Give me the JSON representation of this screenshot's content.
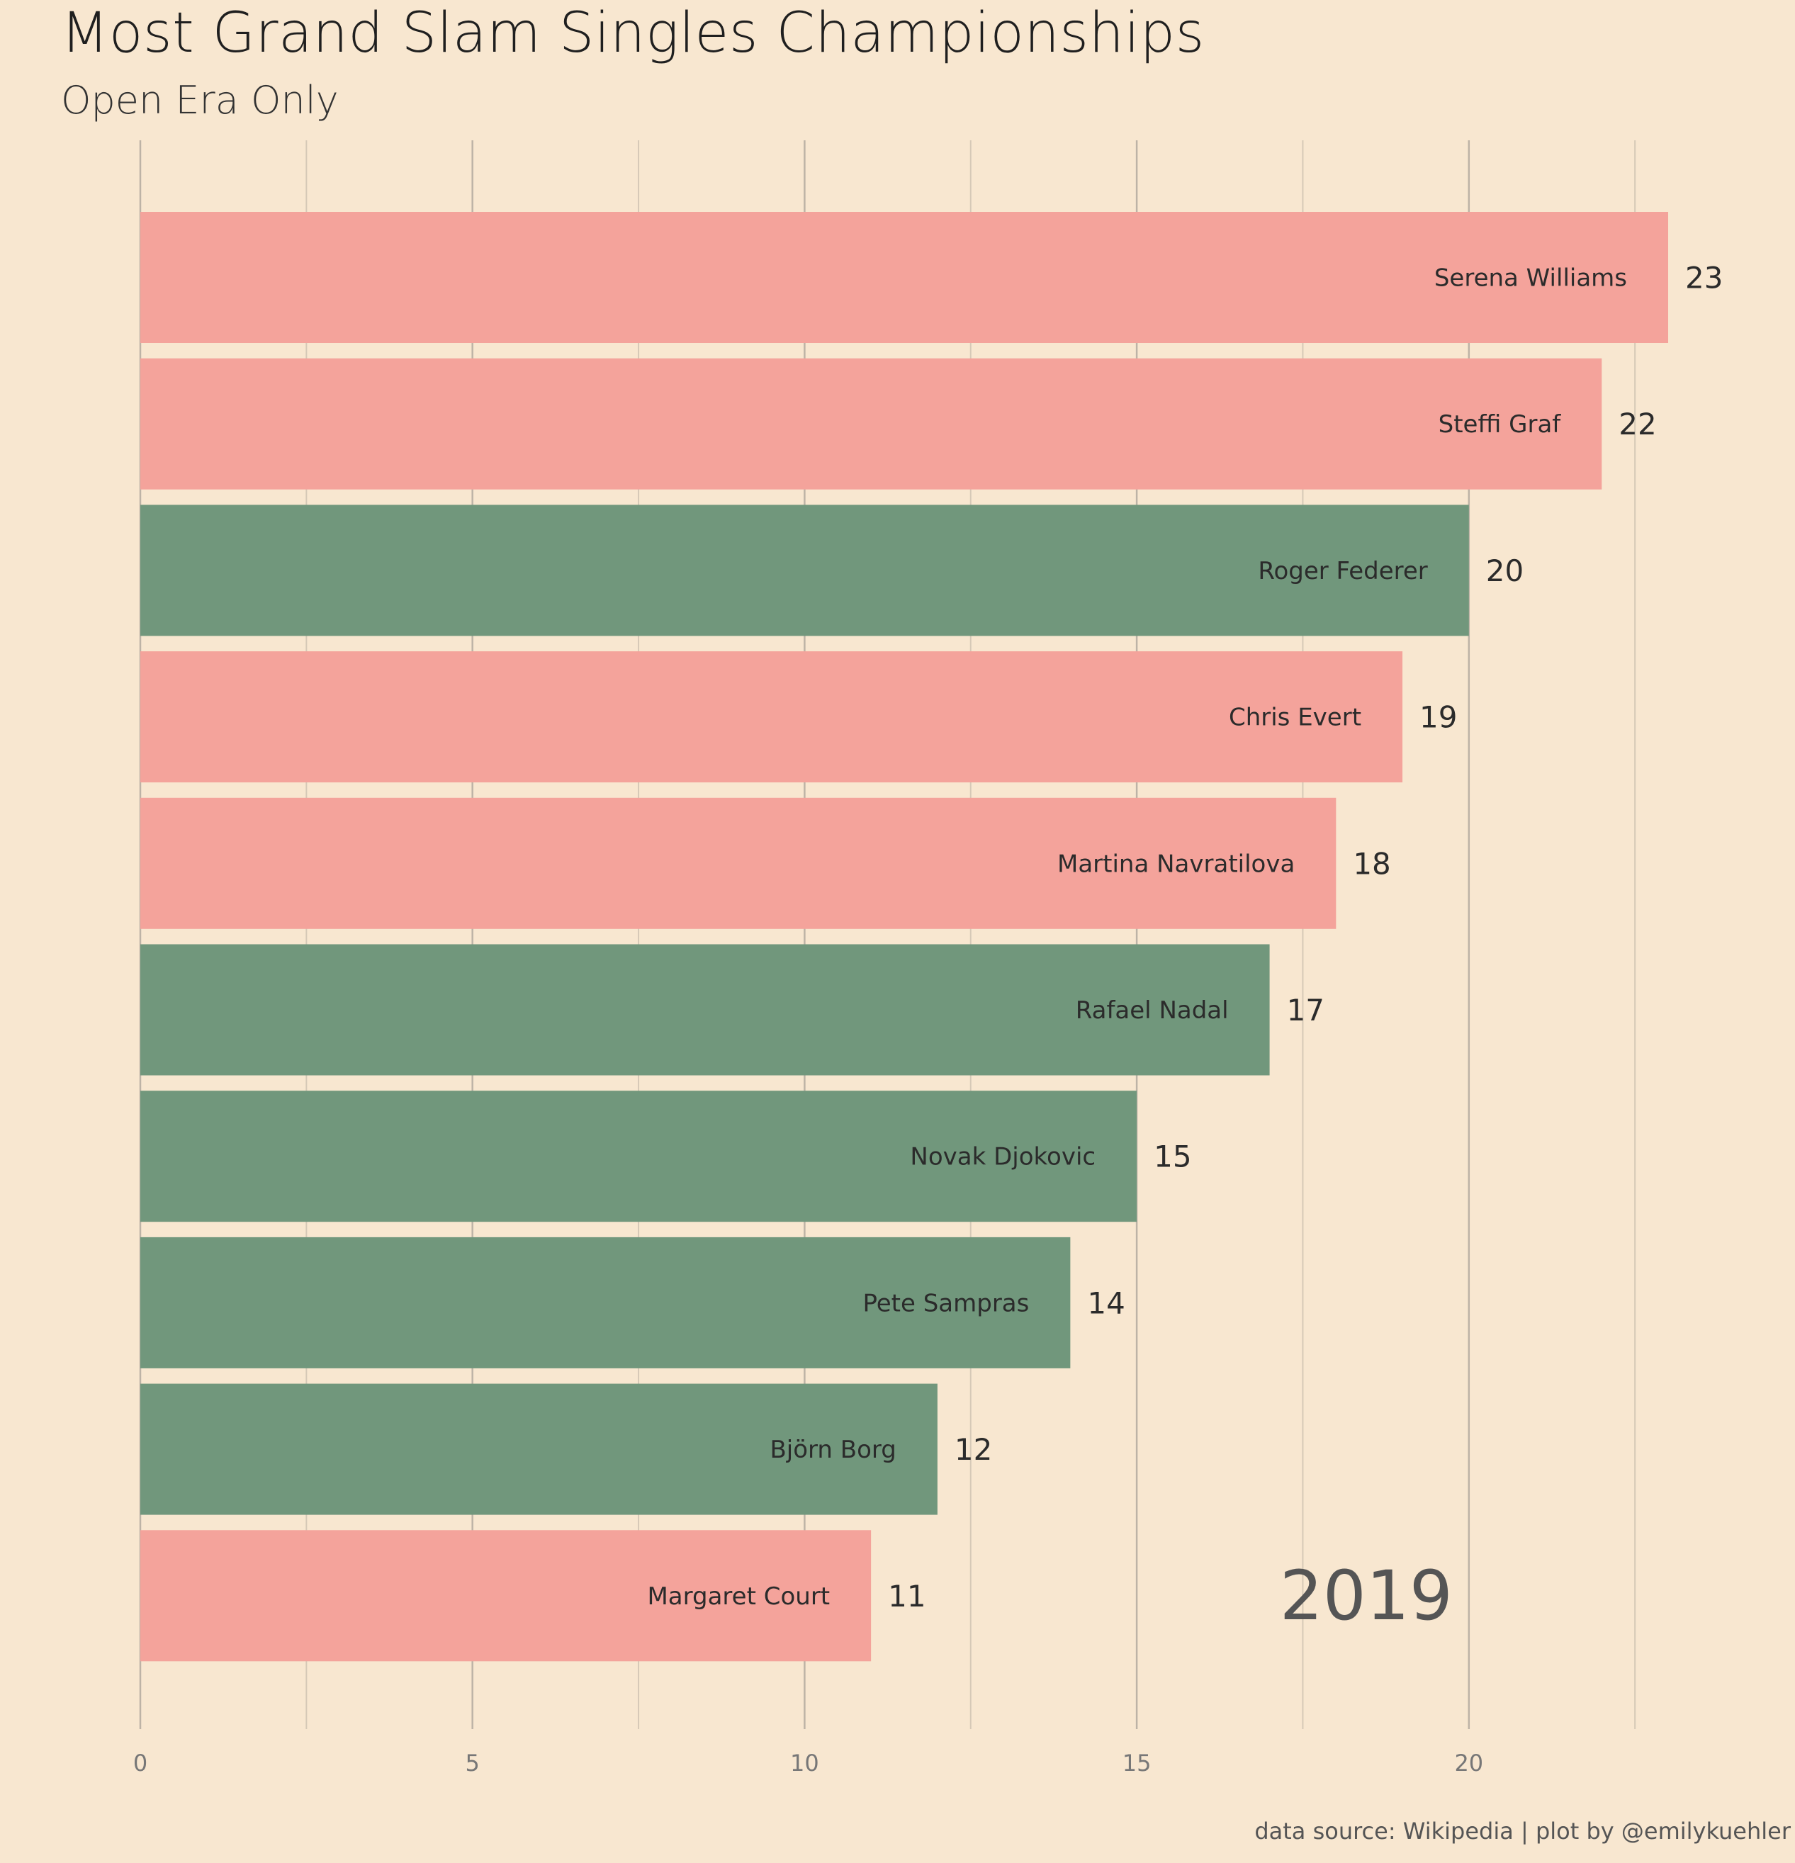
{
  "colors": {
    "background": "#f8e7d0",
    "female": "#f4a39b",
    "male": "#71977c",
    "grid_major": "#bdb3a6",
    "grid_minor": "#d6c9b7"
  },
  "chart_data": {
    "type": "bar",
    "orientation": "horizontal",
    "title": "Most Grand Slam Singles Championships",
    "subtitle": "Open Era Only",
    "categories": [
      "Serena Williams",
      "Steffi Graf",
      "Roger Federer",
      "Chris Evert",
      "Martina Navratilova",
      "Rafael Nadal",
      "Novak Djokovic",
      "Pete Sampras",
      "Björn Borg",
      "Margaret Court"
    ],
    "values": [
      23,
      22,
      20,
      19,
      18,
      17,
      15,
      14,
      12,
      11
    ],
    "groups": [
      "female",
      "female",
      "male",
      "female",
      "female",
      "male",
      "male",
      "male",
      "male",
      "female"
    ],
    "xlim": [
      0,
      23
    ],
    "xticks": [
      0,
      5,
      10,
      15,
      20
    ],
    "xtick_labels": [
      "0",
      "5",
      "10",
      "15",
      "20"
    ],
    "minor_gridlines": [
      2.5,
      7.5,
      12.5,
      17.5,
      22.5
    ],
    "grid": true,
    "legend": "none",
    "xlabel": "",
    "ylabel": "",
    "annotation_year": "2019",
    "caption": "data source: Wikipedia | plot by @emilykuehler"
  }
}
